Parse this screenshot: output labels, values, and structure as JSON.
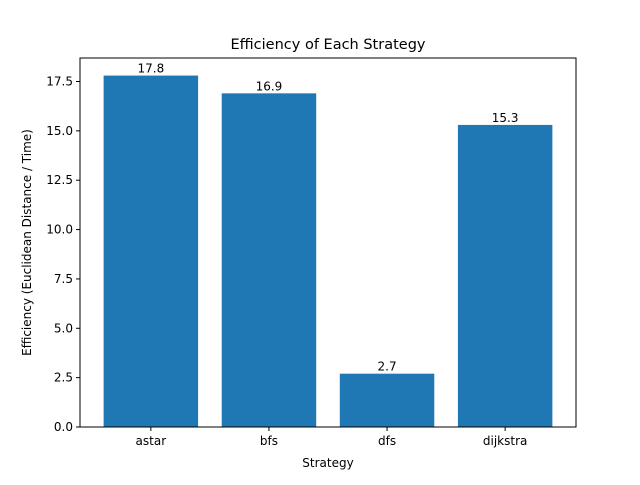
{
  "chart_data": {
    "type": "bar",
    "title": "Efficiency of Each Strategy",
    "xlabel": "Strategy",
    "ylabel": "Efficiency (Euclidean Distance / Time)",
    "categories": [
      "astar",
      "bfs",
      "dfs",
      "dijkstra"
    ],
    "values": [
      17.8,
      16.9,
      2.7,
      15.3
    ],
    "data_labels": [
      "17.8",
      "16.9",
      "2.7",
      "15.3"
    ],
    "ylim": [
      0,
      18.69
    ],
    "yticks": [
      0.0,
      2.5,
      5.0,
      7.5,
      10.0,
      12.5,
      15.0,
      17.5
    ],
    "ytick_labels": [
      "0.0",
      "2.5",
      "5.0",
      "7.5",
      "10.0",
      "12.5",
      "15.0",
      "17.5"
    ],
    "bar_color": "#1f77b4",
    "grid": false,
    "legend": "none"
  }
}
